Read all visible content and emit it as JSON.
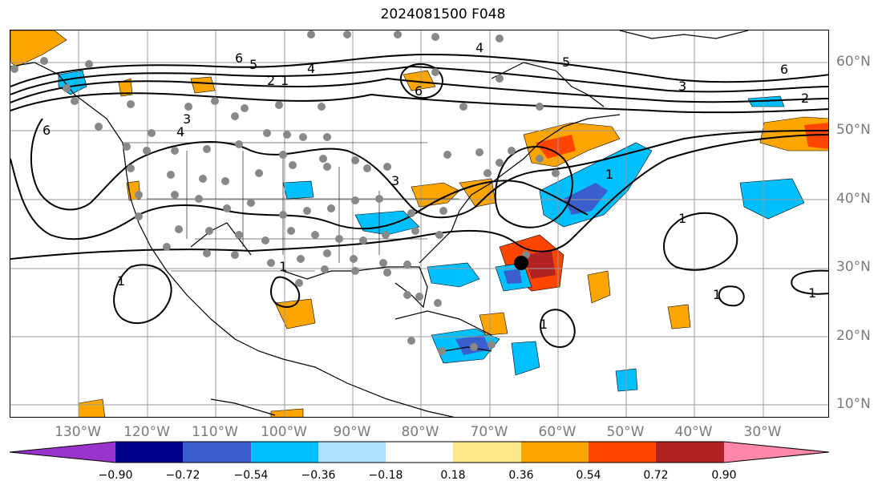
{
  "title": "2024081500 F048",
  "lat_labels": [
    "60°N",
    "50°N",
    "40°N",
    "30°N",
    "20°N",
    "10°N"
  ],
  "lon_labels": [
    "130°W",
    "120°W",
    "110°W",
    "100°W",
    "90°W",
    "80°W",
    "70°W",
    "60°W",
    "50°W",
    "40°W",
    "30°W"
  ],
  "colorbar": {
    "labels": [
      "−0.90",
      "−0.72",
      "−0.54",
      "−0.36",
      "−0.18",
      "0.18",
      "0.36",
      "0.54",
      "0.72",
      "0.90"
    ],
    "colors": [
      "#9933cc",
      "#00008b",
      "#3a5fcd",
      "#00bfff",
      "#aee3ff",
      "#ffffff",
      "#ffe88a",
      "#ffa500",
      "#ff4500",
      "#b22222",
      "#ff88aa"
    ]
  },
  "contour_labels": [
    "6",
    "5",
    "4",
    "3",
    "2",
    "1",
    "3",
    "4",
    "6",
    "6",
    "5",
    "4",
    "3",
    "6",
    "2",
    "1",
    "1",
    "1",
    "1",
    "1",
    "1",
    "1"
  ],
  "marker": "storm-center"
}
